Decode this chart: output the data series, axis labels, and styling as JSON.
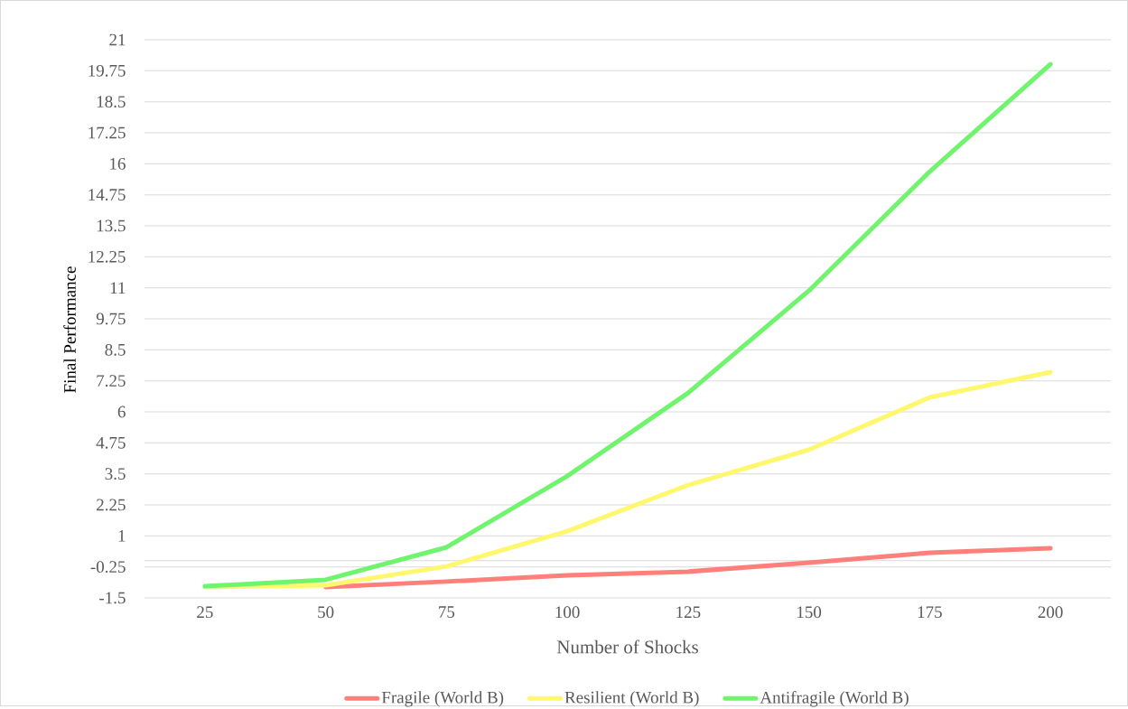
{
  "chart_data": {
    "type": "line",
    "xlabel": "Number of Shocks",
    "ylabel": "Final Performance",
    "categories": [
      "25",
      "50",
      "75",
      "100",
      "125",
      "150",
      "175",
      "200"
    ],
    "series": [
      {
        "name": "Fragile (World B)",
        "color": "#ff7f7a",
        "values": [
          null,
          -1.06,
          -0.84,
          -0.59,
          -0.44,
          -0.08,
          0.32,
          0.5
        ]
      },
      {
        "name": "Resilient (World B)",
        "color": "#fff86e",
        "values": [
          -1.06,
          -0.99,
          -0.23,
          1.19,
          3.05,
          4.47,
          6.58,
          7.6
        ]
      },
      {
        "name": "Antifragile (World B)",
        "color": "#70f46e",
        "values": [
          -1.03,
          -0.77,
          0.54,
          3.41,
          6.76,
          10.88,
          15.68,
          20.01
        ]
      }
    ],
    "ylim": [
      -1.5,
      21
    ],
    "yticks": [
      -1.5,
      -0.25,
      1,
      2.25,
      3.5,
      4.75,
      6,
      7.25,
      8.5,
      9.75,
      11,
      12.25,
      13.5,
      14.75,
      16,
      17.25,
      18.5,
      19.75,
      21
    ],
    "grid": "y",
    "legend": "bottom",
    "marker": "none",
    "line_style": "solid"
  }
}
